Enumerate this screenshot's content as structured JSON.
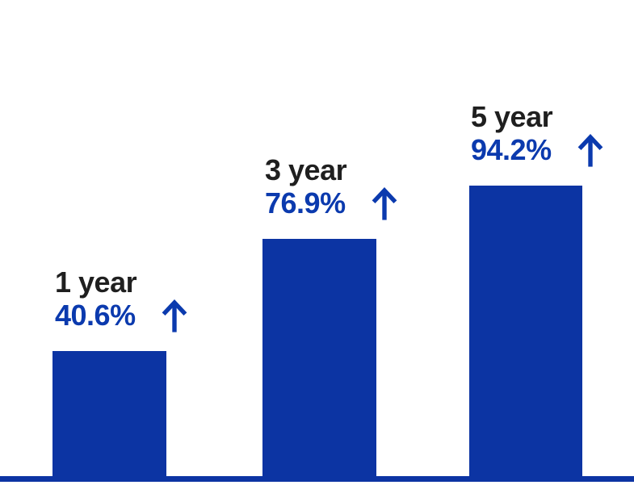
{
  "chart_data": {
    "type": "bar",
    "title": "",
    "orientation": "vertical",
    "categories": [
      "1 year",
      "3 year",
      "5 year"
    ],
    "values": [
      40.6,
      76.9,
      94.2
    ],
    "value_labels": [
      "40.6%",
      "76.9%",
      "94.2%"
    ],
    "value_suffix": "%",
    "annotation_icon": "up-arrow",
    "ylim": [
      0,
      100
    ],
    "grid": false,
    "legend_position": "none",
    "axis_line": "bottom-full-width",
    "colors": {
      "bar": "#0C34A3",
      "axis_line": "#0C34A3",
      "value_text": "#0B3AAE",
      "category_text": "#1F1F1F",
      "background": "#FFFFFF"
    }
  }
}
